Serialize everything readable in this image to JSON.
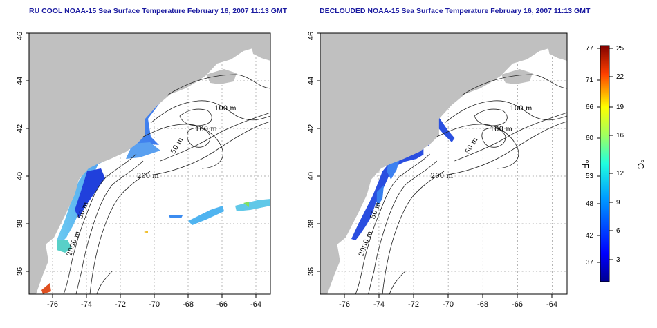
{
  "titles": {
    "left": "RU COOL NOAA-15 Sea Surface Temperature February 16, 2007 11:13 GMT",
    "right": "DECLOUDED NOAA-15 Sea Surface Temperature February 16, 2007 11:13 GMT"
  },
  "axes": {
    "x_ticks": [
      "-76",
      "-74",
      "-72",
      "-70",
      "-68",
      "-66",
      "-64"
    ],
    "y_ticks": [
      "36",
      "38",
      "40",
      "42",
      "44",
      "46"
    ],
    "lon_range": [
      -77.2,
      -63.0
    ],
    "lat_range": [
      35.0,
      46.0
    ]
  },
  "contour_labels": {
    "left": [
      "100 m",
      "100 m",
      "50 m",
      "200 m",
      "50 m",
      "2000 m"
    ],
    "right": [
      "100 m",
      "100 m",
      "50 m",
      "200 m",
      "50 m",
      "2000 m"
    ]
  },
  "colorbar": {
    "fahrenheit_ticks": [
      "77",
      "71",
      "66",
      "60",
      "53",
      "48",
      "42",
      "37"
    ],
    "celsius_ticks": [
      "25",
      "22",
      "19",
      "16",
      "12",
      "9",
      "6",
      "3"
    ],
    "fahrenheit_unit": "°F",
    "celsius_unit": "°C"
  },
  "colors": {
    "land": "#c0c0c0",
    "ocean": "#ffffff",
    "sst_cold": "#1e3cdc",
    "sst_mid": "#3c8cf0",
    "sst_warm": "#c82814",
    "title": "#1a1aa0"
  }
}
